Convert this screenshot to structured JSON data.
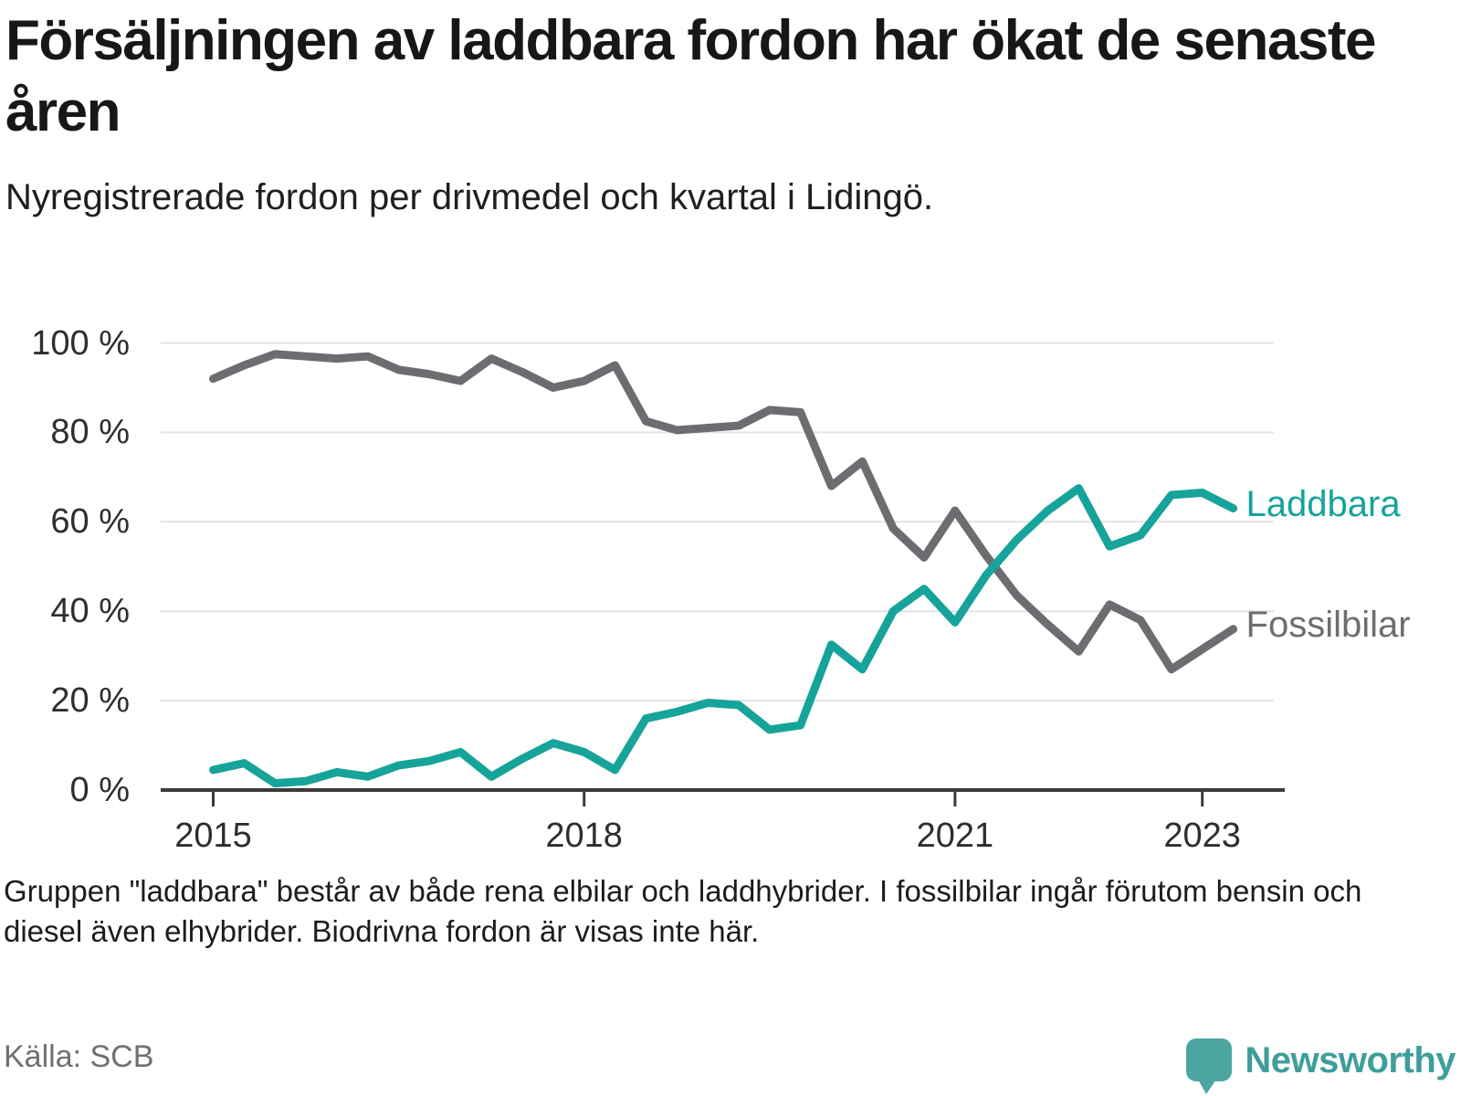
{
  "header": {
    "title": "Försäljningen av laddbara fordon har ökat de senaste åren",
    "subtitle": "Nyregistrerade fordon per drivmedel och kvartal i Lidingö."
  },
  "chart_data": {
    "type": "line",
    "x_unit": "quarter",
    "x_start": "2015 Q1",
    "x_end": "2023 Q2",
    "ylabel": "",
    "xlabel": "",
    "ylim": [
      0,
      100
    ],
    "grid": "horizontal",
    "yticks": [
      "0 %",
      "20 %",
      "40 %",
      "60 %",
      "80 %",
      "100 %"
    ],
    "xticks": [
      {
        "label": "2015",
        "index": 0
      },
      {
        "label": "2018",
        "index": 12
      },
      {
        "label": "2021",
        "index": 24
      },
      {
        "label": "2023",
        "index": 32
      }
    ],
    "series": [
      {
        "name": "Laddbara",
        "color": "#16A39A",
        "values": [
          4.5,
          6,
          1.5,
          2,
          4,
          3,
          5.5,
          6.5,
          8.5,
          3,
          7,
          10.5,
          8.5,
          4.5,
          16,
          17.5,
          19.5,
          19,
          13.5,
          14.5,
          32.5,
          27,
          40,
          45,
          37.5,
          48,
          56,
          62.5,
          67.5,
          54.5,
          57,
          66,
          66.5,
          63
        ]
      },
      {
        "name": "Fossilbilar",
        "color": "#6B6D71",
        "values": [
          92,
          95,
          97.5,
          97,
          96.5,
          97,
          94,
          93,
          91.5,
          96.5,
          93.5,
          90,
          91.5,
          95,
          82.5,
          80.5,
          81,
          81.5,
          85,
          84.5,
          68,
          73.5,
          58.5,
          52,
          62.5,
          52.5,
          43.5,
          37,
          31,
          41.5,
          38,
          27,
          31.5,
          36
        ]
      }
    ]
  },
  "footer": {
    "note": "Gruppen \"laddbara\" består av både rena elbilar och laddhybrider. I fossilbilar ingår förutom bensin och diesel även elhybrider. Biodrivna fordon är visas inte här.",
    "source": "Källa: SCB"
  },
  "branding": {
    "logo_text": "Newsworthy",
    "logo_color": "#3E9E9A",
    "icon": "newsworthy-speech-bubble-chart-icon",
    "icon_color": "#4CA5A1"
  }
}
